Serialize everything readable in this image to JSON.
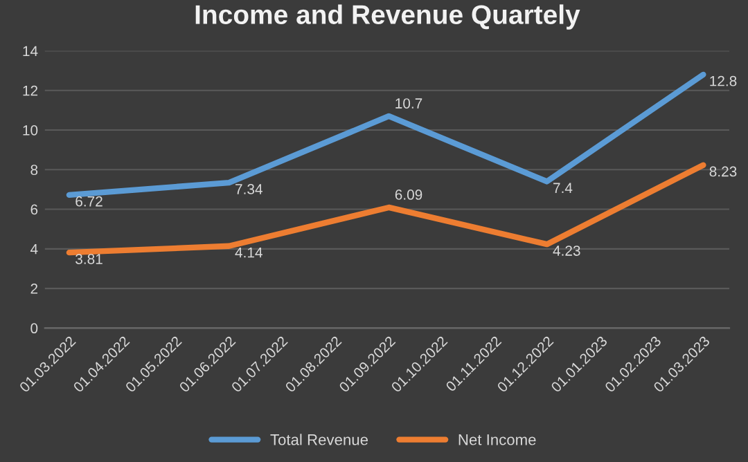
{
  "chart_data": {
    "type": "line",
    "title": "Income and Revenue Quartely",
    "x": [
      "2022-03-01",
      "2022-06-01",
      "2022-09-01",
      "2022-12-01",
      "2023-03-01"
    ],
    "series": [
      {
        "name": "Total Revenue",
        "color": "#5b9bd5",
        "values": [
          6.72,
          7.34,
          10.7,
          7.4,
          12.8
        ]
      },
      {
        "name": "Net Income",
        "color": "#ed7d31",
        "values": [
          3.81,
          4.14,
          6.09,
          4.23,
          8.23
        ]
      }
    ],
    "xlim": [
      "2022-02-15",
      "2023-03-16"
    ],
    "xticks": [
      {
        "value": "2022-03-01",
        "label": "01.03.2022"
      },
      {
        "value": "2022-04-01",
        "label": "01.04.2022"
      },
      {
        "value": "2022-05-01",
        "label": "01.05.2022"
      },
      {
        "value": "2022-06-01",
        "label": "01.06.2022"
      },
      {
        "value": "2022-07-01",
        "label": "01.07.2022"
      },
      {
        "value": "2022-08-01",
        "label": "01.08.2022"
      },
      {
        "value": "2022-09-01",
        "label": "01.09.2022"
      },
      {
        "value": "2022-10-01",
        "label": "01.10.2022"
      },
      {
        "value": "2022-11-01",
        "label": "01.11.2022"
      },
      {
        "value": "2022-12-01",
        "label": "01.12.2022"
      },
      {
        "value": "2023-01-01",
        "label": "01.01.2023"
      },
      {
        "value": "2023-02-01",
        "label": "01.02.2023"
      },
      {
        "value": "2023-03-01",
        "label": "01.03.2023"
      }
    ],
    "ylim": [
      0,
      14
    ],
    "yticks": [
      0,
      2,
      4,
      6,
      8,
      10,
      12,
      14
    ],
    "grid": "y",
    "legend": "bottom",
    "data_labels": true,
    "marker": "none",
    "line_style": "solid"
  }
}
